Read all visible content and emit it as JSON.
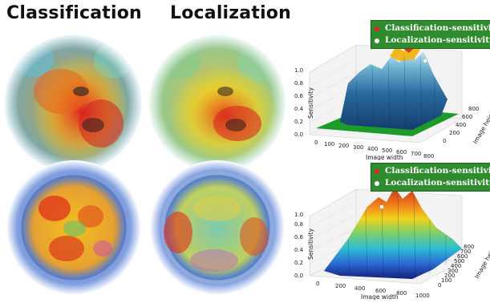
{
  "titles": {
    "left": "Classification",
    "right": "Localization"
  },
  "legend": {
    "classification": "Classification-sensitivity",
    "localization": "Localization-sensitivity",
    "classification_marker_color": "#e82020",
    "localization_marker_color": "#ffffff",
    "background": "#2e8b2e"
  },
  "plot_top": {
    "z_ticks": [
      "0.0",
      "0.2",
      "0.4",
      "0.6",
      "0.8",
      "1.0"
    ],
    "z_label": "Sensitivity",
    "x_ticks": [
      "0",
      "100",
      "200",
      "300",
      "400",
      "500",
      "600",
      "700",
      "800"
    ],
    "x_label": "Image width",
    "y_ticks": [
      "0",
      "200",
      "400",
      "600",
      "800"
    ],
    "y_label": "Image height"
  },
  "plot_bottom": {
    "z_ticks": [
      "0.0",
      "0.2",
      "0.4",
      "0.6",
      "0.8",
      "1.0"
    ],
    "z_label": "Sensitivity",
    "x_ticks": [
      "0",
      "200",
      "400",
      "600",
      "800",
      "1000"
    ],
    "x_label": "Image width",
    "y_ticks": [
      "0",
      "100",
      "200",
      "300",
      "400",
      "500",
      "600",
      "700",
      "800"
    ],
    "y_label": "Image height"
  }
}
